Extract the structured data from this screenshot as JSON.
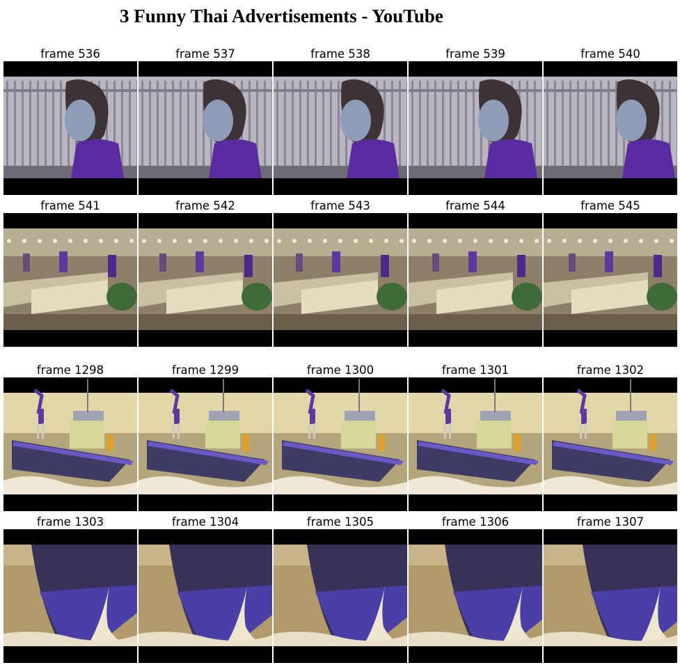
{
  "title": "3 Funny Thai Advertisements - YouTube",
  "frames": [
    {
      "label": "frame 536",
      "scene": "girl",
      "shift": 0
    },
    {
      "label": "frame 537",
      "scene": "girl",
      "shift": 4
    },
    {
      "label": "frame 538",
      "scene": "girl",
      "shift": 8
    },
    {
      "label": "frame 539",
      "scene": "girl",
      "shift": 12
    },
    {
      "label": "frame 540",
      "scene": "girl",
      "shift": 16
    },
    {
      "label": "frame 541",
      "scene": "market",
      "shift": 0
    },
    {
      "label": "frame 542",
      "scene": "market",
      "shift": 2
    },
    {
      "label": "frame 543",
      "scene": "market",
      "shift": 4
    },
    {
      "label": "frame 544",
      "scene": "market",
      "shift": 6
    },
    {
      "label": "frame 545",
      "scene": "market",
      "shift": 8
    },
    {
      "label": "frame 1298",
      "scene": "boat",
      "shift": 0
    },
    {
      "label": "frame 1299",
      "scene": "boat",
      "shift": 1
    },
    {
      "label": "frame 1300",
      "scene": "boat",
      "shift": 2
    },
    {
      "label": "frame 1301",
      "scene": "boat",
      "shift": 3
    },
    {
      "label": "frame 1302",
      "scene": "boat",
      "shift": 4
    },
    {
      "label": "frame 1303",
      "scene": "hull",
      "shift": 0
    },
    {
      "label": "frame 1304",
      "scene": "hull",
      "shift": 4
    },
    {
      "label": "frame 1305",
      "scene": "hull",
      "shift": 8
    },
    {
      "label": "frame 1306",
      "scene": "hull",
      "shift": 12
    },
    {
      "label": "frame 1307",
      "scene": "hull",
      "shift": 16
    }
  ]
}
